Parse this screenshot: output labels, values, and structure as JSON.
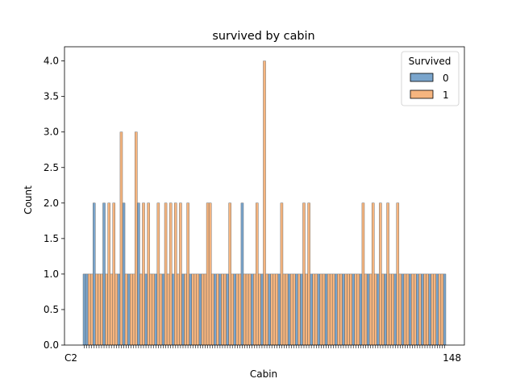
{
  "chart_data": {
    "type": "bar",
    "title": "survived by cabin",
    "xlabel": "Cabin",
    "ylabel": "Count",
    "ylim": [
      0,
      4.2
    ],
    "yticks": [
      "0.0",
      "0.5",
      "1.0",
      "1.5",
      "2.0",
      "2.5",
      "3.0",
      "3.5",
      "4.0"
    ],
    "x_first_label": "C2",
    "x_last_label": "148",
    "legend": {
      "title": "Survived",
      "placement": "top-right",
      "entries": [
        {
          "label": "0",
          "color": "#7aa5cc"
        },
        {
          "label": "1",
          "color": "#f6b57f"
        }
      ]
    },
    "num_categories": 147,
    "series": [
      {
        "name": "0",
        "color": "#7aa5cc",
        "nonzero": {
          "0": 1,
          "1": 1,
          "4": 2,
          "8": 2,
          "14": 1,
          "16": 2,
          "18": 1,
          "22": 2,
          "25": 1,
          "29": 1,
          "32": 1,
          "36": 1,
          "40": 1,
          "43": 1,
          "47": 1,
          "53": 1,
          "55": 1,
          "58": 1,
          "61": 1,
          "64": 2,
          "68": 1,
          "72": 1,
          "75": 1,
          "79": 1,
          "83": 1,
          "86": 1,
          "88": 1,
          "92": 1,
          "95": 1,
          "98": 1,
          "102": 1,
          "105": 1,
          "109": 1,
          "112": 1,
          "115": 1,
          "119": 1,
          "122": 1,
          "126": 1,
          "129": 1,
          "132": 1,
          "135": 1,
          "137": 1,
          "140": 1,
          "143": 1,
          "146": 1
        }
      },
      {
        "name": "1",
        "color": "#f6b57f",
        "nonzero": {
          "2": 1,
          "3": 1,
          "5": 1,
          "6": 1,
          "7": 1,
          "9": 1,
          "10": 2,
          "11": 1,
          "12": 2,
          "13": 1,
          "15": 3,
          "17": 1,
          "19": 1,
          "20": 1,
          "21": 3,
          "23": 1,
          "24": 2,
          "26": 2,
          "27": 1,
          "28": 1,
          "30": 2,
          "31": 1,
          "33": 2,
          "34": 1,
          "35": 2,
          "37": 2,
          "38": 1,
          "39": 2,
          "41": 1,
          "42": 2,
          "44": 1,
          "45": 1,
          "46": 1,
          "48": 1,
          "49": 1,
          "50": 2,
          "51": 2,
          "52": 1,
          "54": 1,
          "56": 1,
          "57": 1,
          "59": 2,
          "60": 1,
          "62": 1,
          "63": 1,
          "65": 1,
          "66": 1,
          "67": 1,
          "69": 1,
          "70": 2,
          "71": 1,
          "73": 4,
          "74": 1,
          "76": 1,
          "77": 1,
          "78": 1,
          "80": 2,
          "81": 1,
          "82": 1,
          "84": 1,
          "85": 1,
          "87": 1,
          "89": 2,
          "90": 1,
          "91": 2,
          "93": 1,
          "94": 1,
          "96": 1,
          "97": 1,
          "99": 1,
          "100": 1,
          "101": 1,
          "103": 1,
          "104": 1,
          "106": 1,
          "107": 1,
          "108": 1,
          "110": 1,
          "111": 1,
          "113": 2,
          "114": 1,
          "116": 1,
          "117": 2,
          "118": 1,
          "120": 2,
          "121": 1,
          "123": 2,
          "124": 1,
          "125": 1,
          "127": 2,
          "128": 1,
          "130": 1,
          "131": 1,
          "133": 1,
          "134": 1,
          "136": 1,
          "138": 1,
          "139": 1,
          "141": 1,
          "142": 1,
          "144": 1,
          "145": 1
        }
      }
    ]
  }
}
